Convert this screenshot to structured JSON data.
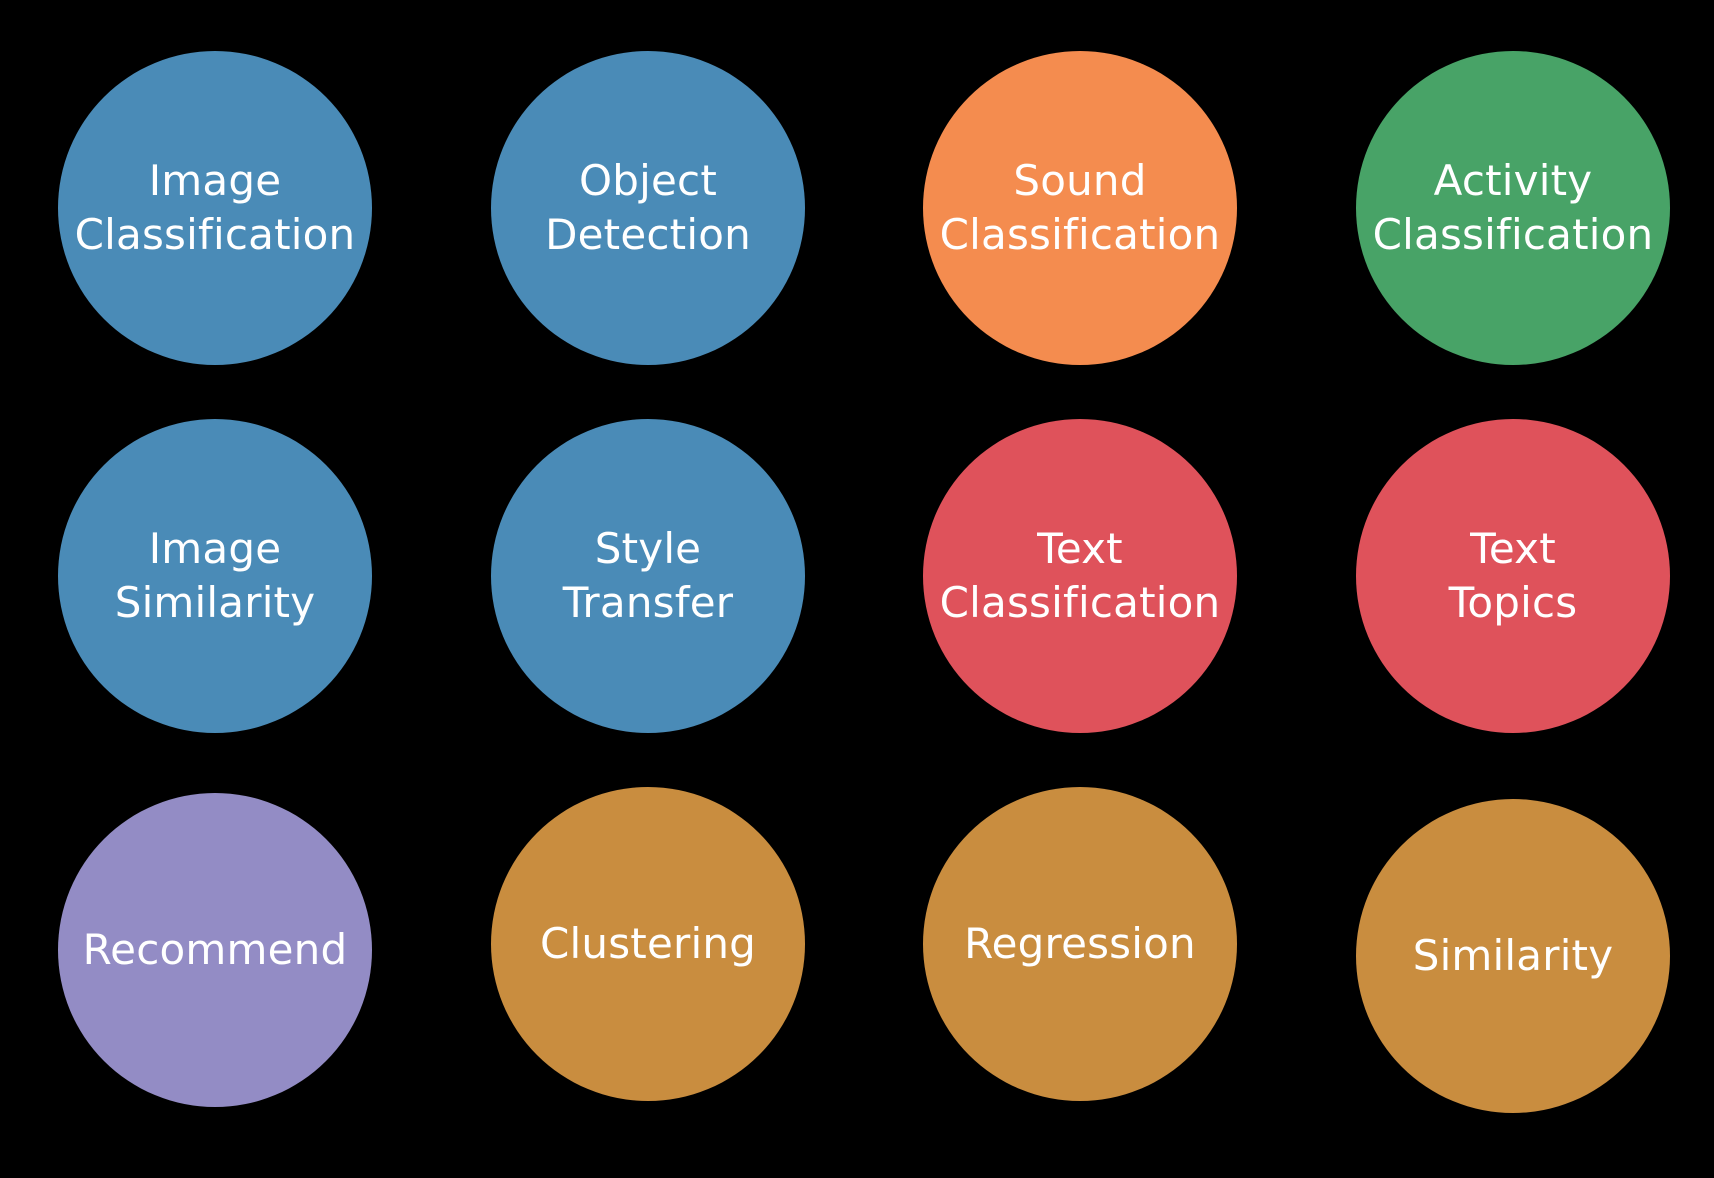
{
  "colors": {
    "background": "#000000",
    "blue": "#4a8bb7",
    "orange": "#f48c4f",
    "green": "#48a367",
    "red": "#df525b",
    "purple": "#938cc5",
    "gold": "#c98d3f",
    "text": "#ffffff"
  },
  "items": [
    {
      "line1": "Image",
      "line2": "Classification",
      "color": "#4a8bb7"
    },
    {
      "line1": "Object",
      "line2": "Detection",
      "color": "#4a8bb7"
    },
    {
      "line1": "Sound",
      "line2": "Classification",
      "color": "#f48c4f"
    },
    {
      "line1": "Activity",
      "line2": "Classification",
      "color": "#48a367"
    },
    {
      "line1": "Image",
      "line2": "Similarity",
      "color": "#4a8bb7"
    },
    {
      "line1": "Style",
      "line2": "Transfer",
      "color": "#4a8bb7"
    },
    {
      "line1": "Text",
      "line2": "Classification",
      "color": "#df525b"
    },
    {
      "line1": "Text",
      "line2": "Topics",
      "color": "#df525b"
    },
    {
      "line1": "Recommend",
      "line2": "",
      "color": "#938cc5"
    },
    {
      "line1": "Clustering",
      "line2": "",
      "color": "#c98d3f"
    },
    {
      "line1": "Regression",
      "line2": "",
      "color": "#c98d3f"
    },
    {
      "line1": "Similarity",
      "line2": "",
      "color": "#c98d3f"
    }
  ]
}
